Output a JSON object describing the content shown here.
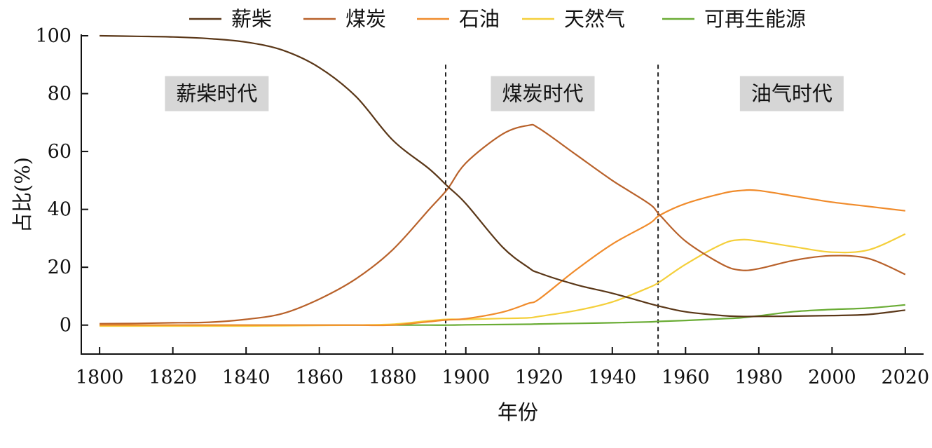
{
  "chart_data": {
    "type": "line",
    "title": "",
    "xlabel": "年份",
    "ylabel": "占比(%)",
    "xlim": [
      1795,
      2025
    ],
    "ylim": [
      -10,
      100
    ],
    "x_ticks": [
      1800,
      1820,
      1840,
      1860,
      1880,
      1900,
      1920,
      1940,
      1960,
      1980,
      2000,
      2020
    ],
    "y_ticks": [
      0,
      20,
      40,
      60,
      80,
      100
    ],
    "grid": false,
    "legend_position": "top",
    "x": [
      1800,
      1810,
      1820,
      1830,
      1840,
      1850,
      1860,
      1870,
      1880,
      1890,
      1895,
      1900,
      1910,
      1917,
      1920,
      1930,
      1940,
      1950,
      1953,
      1960,
      1970,
      1975,
      1980,
      1990,
      2000,
      2010,
      2020
    ],
    "series": [
      {
        "name": "薪柴",
        "color": "#5a3718",
        "values": [
          100,
          99.8,
          99.6,
          99,
          97.8,
          95,
          89,
          79,
          64,
          54,
          48,
          42,
          27,
          20,
          18,
          14,
          11,
          7.5,
          6.5,
          4.6,
          3.3,
          3.0,
          3.0,
          3.1,
          3.3,
          3.7,
          5.2
        ]
      },
      {
        "name": "煤炭",
        "color": "#b8612a",
        "values": [
          0.5,
          0.6,
          0.8,
          1.0,
          2.0,
          4.0,
          9.0,
          16.0,
          26.0,
          40.0,
          47.0,
          56.0,
          66.0,
          69.0,
          68.0,
          59.0,
          50.0,
          42.0,
          38.0,
          29.0,
          21.0,
          19.0,
          19.5,
          22.5,
          24.0,
          23.0,
          17.5
        ]
      },
      {
        "name": "石油",
        "color": "#f08b2b",
        "values": [
          0,
          0,
          0,
          0,
          0,
          0,
          0,
          0,
          0,
          1.2,
          1.8,
          2.2,
          4.5,
          7.5,
          9.0,
          19.0,
          28.0,
          35.0,
          38.0,
          42.0,
          45.5,
          46.5,
          46.5,
          44.5,
          42.5,
          41.0,
          39.5
        ]
      },
      {
        "name": "天然气",
        "color": "#f4cf3a",
        "values": [
          -0.3,
          -0.3,
          -0.3,
          -0.3,
          -0.3,
          -0.2,
          -0.1,
          0,
          0.3,
          1.5,
          2.0,
          2.0,
          2.3,
          2.5,
          3.0,
          5.0,
          8.0,
          13.0,
          15.0,
          21.0,
          28.0,
          29.5,
          29.0,
          27.0,
          25.2,
          26.0,
          31.5
        ]
      },
      {
        "name": "可再生能源",
        "color": "#6aac35",
        "values": [
          0,
          0,
          0,
          0,
          0,
          0,
          0,
          0,
          0,
          0,
          0,
          0.1,
          0.2,
          0.3,
          0.4,
          0.6,
          0.8,
          1.1,
          1.3,
          1.6,
          2.2,
          2.5,
          3.2,
          4.7,
          5.4,
          5.9,
          7.0
        ]
      }
    ],
    "dividers": [
      1894.5,
      1952.5
    ],
    "eras": [
      {
        "label": "薪柴时代",
        "x": 1832,
        "y": 80
      },
      {
        "label": "煤炭时代",
        "x": 1921,
        "y": 80
      },
      {
        "label": "油气时代",
        "x": 1989,
        "y": 80
      }
    ]
  }
}
